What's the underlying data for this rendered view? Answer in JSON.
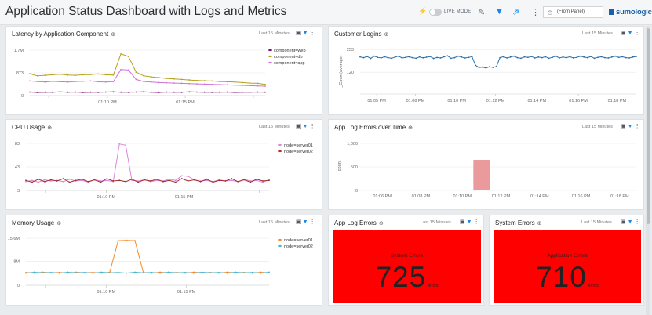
{
  "header": {
    "title": "Application Status Dashboard with Logs and Metrics",
    "live_mode_label": "LIVE MODE",
    "from_panel": "(From Panel)",
    "logo_text": "sumologic"
  },
  "panels": {
    "latency": {
      "title": "Latency by Application Component",
      "range": "Last 15 Minutes",
      "y_ticks": [
        "1.7M",
        "873",
        "0"
      ],
      "x_ticks": [
        "01:10 PM",
        "01:15 PM"
      ],
      "legend": [
        "component=web",
        "component=db",
        "component=app"
      ]
    },
    "logins": {
      "title": "Customer Logins",
      "range": "Last 15 Minutes",
      "y_ticks": [
        "253",
        "120"
      ],
      "ylabel": "_Count(average)",
      "x_ticks": [
        "01:05 PM",
        "01:08 PM",
        "01:10 PM",
        "01:12 PM",
        "01:14 PM",
        "01:16 PM",
        "01:18 PM"
      ]
    },
    "cpu": {
      "title": "CPU Usage",
      "range": "Last 15 Minutes",
      "y_ticks": [
        "83",
        "43",
        "3"
      ],
      "x_ticks": [
        "01:10 PM",
        "01:15 PM"
      ],
      "legend": [
        "node=server01",
        "node=server02"
      ]
    },
    "app_log_errors_time": {
      "title": "App Log Errors over Time",
      "range": "Last 15 Minutes",
      "y_ticks": [
        "1,000",
        "500",
        "0"
      ],
      "ylabel": "_count",
      "x_ticks": [
        "01:06 PM",
        "01:08 PM",
        "01:10 PM",
        "01:12 PM",
        "01:14 PM",
        "01:16 PM",
        "01:18 PM"
      ]
    },
    "memory": {
      "title": "Memory Usage",
      "range": "Last 15 Minutes",
      "y_ticks": [
        "15.6M",
        "8M",
        "0"
      ],
      "x_ticks": [
        "01:10 PM",
        "01:15 PM"
      ],
      "legend": [
        "node=server01",
        "node=server02"
      ]
    },
    "app_log_errors": {
      "title": "App Log Errors",
      "range": "Last 15 Minutes",
      "label": "System Errors",
      "value": "725",
      "unit": "errors"
    },
    "system_errors": {
      "title": "System Errors",
      "range": "Last 15 Minutes",
      "label": "Application Errors",
      "value": "710",
      "unit": "errors"
    }
  },
  "colors": {
    "web": "#7b0a6e",
    "db": "#b5a21a",
    "app": "#d072d8",
    "logins": "#2a6ea8",
    "server01_cpu": "#d987d9",
    "server02_cpu": "#a62b2b",
    "errors_bar": "#eb9a9c",
    "server01_mem": "#f58a2c",
    "server02_mem": "#4ab0c9",
    "single_value_bg": "#ff0000"
  },
  "chart_data": [
    {
      "panel": "latency",
      "type": "line",
      "ylim": [
        0,
        1746
      ],
      "series": [
        {
          "name": "component=web",
          "values": [
            135,
            120,
            130,
            125,
            140,
            130,
            135,
            120,
            130,
            125,
            135,
            140,
            130,
            125,
            135,
            145,
            130,
            120,
            135,
            130,
            125,
            140,
            135,
            130,
            125,
            130,
            135,
            120,
            130,
            125,
            135,
            130
          ]
        },
        {
          "name": "component=db",
          "values": [
            840,
            760,
            780,
            800,
            820,
            790,
            780,
            800,
            810,
            830,
            800,
            790,
            1600,
            1500,
            900,
            760,
            720,
            690,
            660,
            640,
            620,
            600,
            580,
            570,
            560,
            540,
            530,
            520,
            500,
            480,
            470,
            430
          ]
        },
        {
          "name": "component=app",
          "values": [
            560,
            540,
            520,
            545,
            530,
            520,
            540,
            550,
            560,
            530,
            520,
            540,
            1000,
            980,
            620,
            540,
            520,
            500,
            490,
            480,
            470,
            460,
            450,
            440,
            430,
            420,
            410,
            400,
            390,
            380,
            370,
            360
          ]
        }
      ]
    },
    {
      "panel": "logins",
      "type": "line",
      "ylim": [
        0,
        300
      ],
      "series": [
        {
          "name": "logins",
          "values": [
            245,
            240,
            248,
            235,
            250,
            242,
            238,
            246,
            240,
            236,
            244,
            250,
            238,
            242,
            246,
            240,
            236,
            245,
            239,
            243,
            248,
            235,
            241,
            238,
            246,
            252,
            236,
            240,
            250,
            244,
            238,
            242,
            246,
            190,
            175,
            178,
            172,
            180,
            176,
            182,
            240,
            246,
            238,
            244,
            250,
            240,
            236,
            245,
            242,
            248,
            238,
            244,
            240,
            246,
            236,
            242,
            250,
            238,
            244,
            240,
            246,
            238,
            242,
            250,
            244,
            240,
            248,
            236,
            242,
            246,
            240,
            238,
            244,
            250,
            242,
            246,
            240,
            238,
            244,
            248
          ]
        }
      ]
    },
    {
      "panel": "cpu",
      "type": "line",
      "ylim": [
        3,
        83
      ],
      "series": [
        {
          "name": "node=server01",
          "values": [
            18,
            20,
            17,
            21,
            19,
            20,
            18,
            22,
            19,
            20,
            17,
            21,
            19,
            20,
            18,
            82,
            80,
            20,
            19,
            21,
            18,
            20,
            19,
            22,
            20,
            28,
            27,
            21,
            19,
            20,
            18,
            21,
            19,
            20,
            18,
            22,
            19,
            20,
            17,
            21
          ]
        },
        {
          "name": "node=server02",
          "values": [
            20,
            17,
            22,
            18,
            21,
            19,
            23,
            17,
            20,
            22,
            18,
            21,
            17,
            23,
            19,
            20,
            18,
            22,
            17,
            21,
            19,
            22,
            18,
            20,
            17,
            23,
            19,
            21,
            18,
            22,
            17,
            20,
            19,
            23,
            18,
            21,
            17,
            22,
            19,
            20
          ]
        }
      ]
    },
    {
      "panel": "app_log_errors_time",
      "type": "bar",
      "ylim": [
        0,
        1000
      ],
      "series": [
        {
          "name": "_count",
          "values": [
            650
          ]
        }
      ]
    },
    {
      "panel": "memory",
      "type": "line",
      "ylim": [
        0,
        15.6
      ],
      "series": [
        {
          "name": "node=server01",
          "values": [
            4.2,
            4.0,
            4.3,
            4.1,
            4.2,
            4.0,
            4.3,
            4.1,
            4.2,
            4.0,
            4.3,
            14.8,
            14.9,
            14.8,
            4.2,
            4.0,
            4.3,
            4.1,
            4.2,
            4.0,
            4.3,
            4.1,
            4.2,
            4.0,
            4.3,
            4.1,
            4.2,
            4.0,
            4.3,
            4.1
          ]
        },
        {
          "name": "node=server02",
          "values": [
            4.0,
            4.3,
            4.1,
            4.2,
            4.0,
            4.3,
            4.1,
            4.2,
            4.0,
            4.3,
            4.1,
            4.2,
            4.0,
            4.3,
            4.1,
            4.2,
            4.0,
            4.3,
            4.1,
            4.2,
            4.0,
            4.3,
            4.1,
            4.2,
            4.0,
            4.3,
            4.1,
            4.2,
            4.0,
            4.3
          ]
        }
      ]
    }
  ]
}
